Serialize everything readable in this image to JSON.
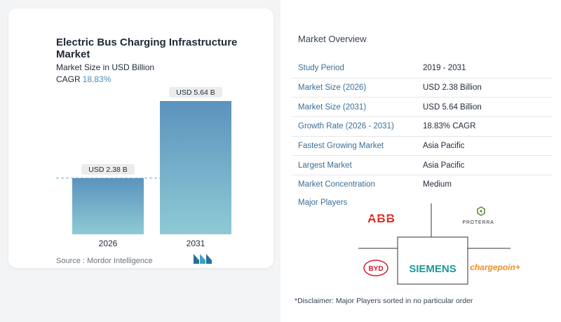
{
  "chart": {
    "title": "Electric Bus Charging Infrastructure Market",
    "subtitle": "Market Size in USD Billion",
    "cagr_label": "CAGR",
    "cagr_value": "18.83%",
    "source": "Source :  Mordor Intelligence"
  },
  "chart_data": {
    "type": "bar",
    "categories": [
      "2026",
      "2031"
    ],
    "values": [
      2.38,
      5.64
    ],
    "data_labels": [
      "USD 2.38 B",
      "USD 5.64 B"
    ],
    "colors": {
      "bar_top": "#5b93be",
      "bar_bottom": "#8ecad4",
      "reference_line": "#6aa9c0",
      "label_bg": "#ececec"
    },
    "reference_line": "dashed at first bar value",
    "grid": false
  },
  "overview": {
    "title": "Market Overview",
    "rows": [
      {
        "key": "Study Period",
        "value": "2019 - 2031"
      },
      {
        "key": "Market Size (2026)",
        "value": "USD 2.38 Billion"
      },
      {
        "key": "Market Size (2031)",
        "value": "USD 5.64 Billion"
      },
      {
        "key": "Growth Rate (2026 - 2031)",
        "value": "18.83% CAGR"
      },
      {
        "key": "Fastest Growing Market",
        "value": "Asia Pacific"
      },
      {
        "key": "Largest Market",
        "value": "Asia Pacific"
      },
      {
        "key": "Market Concentration",
        "value": "Medium"
      }
    ]
  },
  "players": {
    "label": "Major Players",
    "logos": [
      "ABB",
      "PROTERRA",
      "BYD",
      "SIEMENS",
      "chargepoin+"
    ]
  },
  "disclaimer": "*Disclaimer: Major Players sorted in no particular order",
  "colors": {
    "accent": "#3b6e96",
    "abb": "#e2231a",
    "siemens": "#1a9a9a",
    "chargepoint": "#f28c1e",
    "byd": "#d11f2e",
    "proterra": "#5f8c3a"
  }
}
